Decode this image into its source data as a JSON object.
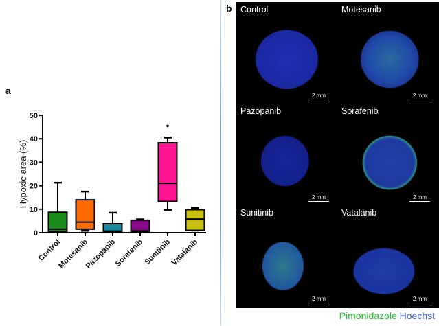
{
  "panel_a": {
    "label": "a"
  },
  "panel_b": {
    "label": "b",
    "cells": [
      {
        "title": "Control",
        "scale": "2 mm"
      },
      {
        "title": "Motesanib",
        "scale": "2 mm"
      },
      {
        "title": "Pazopanib",
        "scale": "2 mm"
      },
      {
        "title": "Sorafenib",
        "scale": "2 mm"
      },
      {
        "title": "Sunitinib",
        "scale": "2 mm"
      },
      {
        "title": "Vatalanib",
        "scale": "2 mm"
      }
    ],
    "legend": {
      "stain1": "Pimonidazole",
      "stain1_color": "#1fbf2a",
      "stain2": "Hoechst",
      "stain2_color": "#2f5fd0"
    }
  },
  "chart_data": {
    "type": "box",
    "title": "",
    "xlabel": "",
    "ylabel": "Hypoxic area (%)",
    "ylim": [
      0,
      50
    ],
    "yticks": [
      0,
      10,
      20,
      30,
      40,
      50
    ],
    "grid": false,
    "categories": [
      "Control",
      "Motesanib",
      "Pazopanib",
      "Sorafenib",
      "Sunitinib",
      "Vatalanib"
    ],
    "series": [
      {
        "name": "Control",
        "color": "#1a8a1a",
        "min": 0.3,
        "q1": 0.5,
        "median": 1.5,
        "q3": 8.7,
        "max": 21.3,
        "outliers": []
      },
      {
        "name": "Motesanib",
        "color": "#ff6a00",
        "min": 0.8,
        "q1": 1.5,
        "median": 4.5,
        "q3": 14.0,
        "max": 17.5,
        "outliers": []
      },
      {
        "name": "Pazopanib",
        "color": "#1a8aa0",
        "min": 0.2,
        "q1": 0.5,
        "median": 0.7,
        "q3": 3.8,
        "max": 8.5,
        "outliers": []
      },
      {
        "name": "Sorafenib",
        "color": "#8a0a8a",
        "min": 0.3,
        "q1": 0.5,
        "median": 0.8,
        "q3": 5.3,
        "max": 5.7,
        "outliers": []
      },
      {
        "name": "Sunitinib",
        "color": "#ff1493",
        "min": 9.7,
        "q1": 13.3,
        "median": 21.0,
        "q3": 38.3,
        "max": 40.5,
        "outliers": [
          45.5
        ]
      },
      {
        "name": "Vatalanib",
        "color": "#c8c010",
        "min": 0.9,
        "q1": 1.0,
        "median": 5.8,
        "q3": 9.8,
        "max": 10.6,
        "outliers": []
      }
    ]
  }
}
